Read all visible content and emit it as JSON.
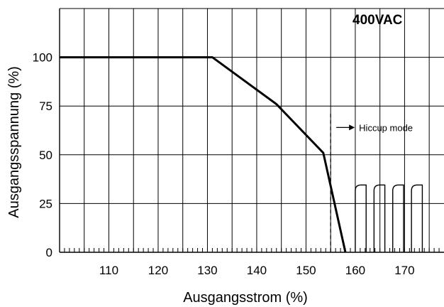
{
  "chart_data": {
    "type": "line",
    "badge": "400VAC",
    "xlabel": "Ausgangsstrom (%)",
    "ylabel": "Ausgangsspannung (%)",
    "xlim": [
      100,
      178
    ],
    "ylim": [
      0,
      125
    ],
    "x_ticks": [
      110,
      120,
      130,
      140,
      150,
      160,
      170
    ],
    "y_ticks": [
      0,
      25,
      50,
      75,
      100
    ],
    "x_grid": [
      105,
      110,
      115,
      120,
      125,
      130,
      135,
      140,
      145,
      150,
      155,
      160,
      165,
      170,
      175
    ],
    "y_grid": [
      25,
      50,
      75,
      100,
      125
    ],
    "minor_tick_step": 1,
    "grid": true,
    "series": [
      {
        "values_xy": [
          [
            100,
            100
          ],
          [
            131,
            100
          ],
          [
            144,
            76
          ],
          [
            153.5,
            51
          ],
          [
            158,
            0
          ]
        ]
      }
    ],
    "hiccup_pulses": {
      "starts": [
        160,
        163.8,
        167.6,
        171.4
      ],
      "width": 2.2,
      "peak": 34.5
    },
    "threshold_x": 155,
    "annotation": {
      "text": "Hiccup mode",
      "y": 64
    },
    "colors": {
      "line": "#000000",
      "grid": "#000000"
    }
  }
}
